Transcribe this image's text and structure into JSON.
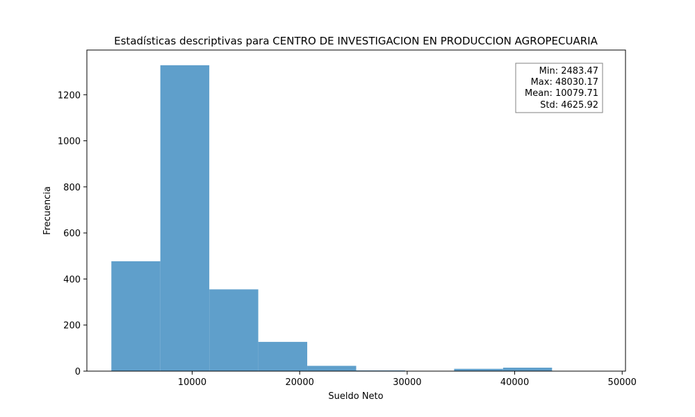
{
  "chart_data": {
    "type": "bar",
    "title": "Estadísticas descriptivas para CENTRO DE INVESTIGACION EN PRODUCCION AGROPECUARIA",
    "xlabel": "Sueldo Neto",
    "ylabel": "Frecuencia",
    "bin_edges": [
      2483.47,
      7038.14,
      11592.81,
      16147.48,
      20702.15,
      25256.82,
      29811.49,
      34366.16,
      38920.83,
      43475.5,
      48030.17
    ],
    "values": [
      477,
      1328,
      355,
      127,
      23,
      3,
      0,
      10,
      15,
      0
    ],
    "xlim": [
      205.1,
      50308.5
    ],
    "ylim": [
      0,
      1394
    ],
    "xticks": [
      10000,
      20000,
      30000,
      40000,
      50000
    ],
    "yticks": [
      0,
      200,
      400,
      600,
      800,
      1000,
      1200
    ],
    "bar_color": "#5f9fcb",
    "grid": false,
    "stats_box": {
      "placement": "top-right",
      "lines": [
        "Min: 2483.47",
        "Max: 48030.17",
        "Mean: 10079.71",
        "Std: 4625.92"
      ]
    }
  }
}
